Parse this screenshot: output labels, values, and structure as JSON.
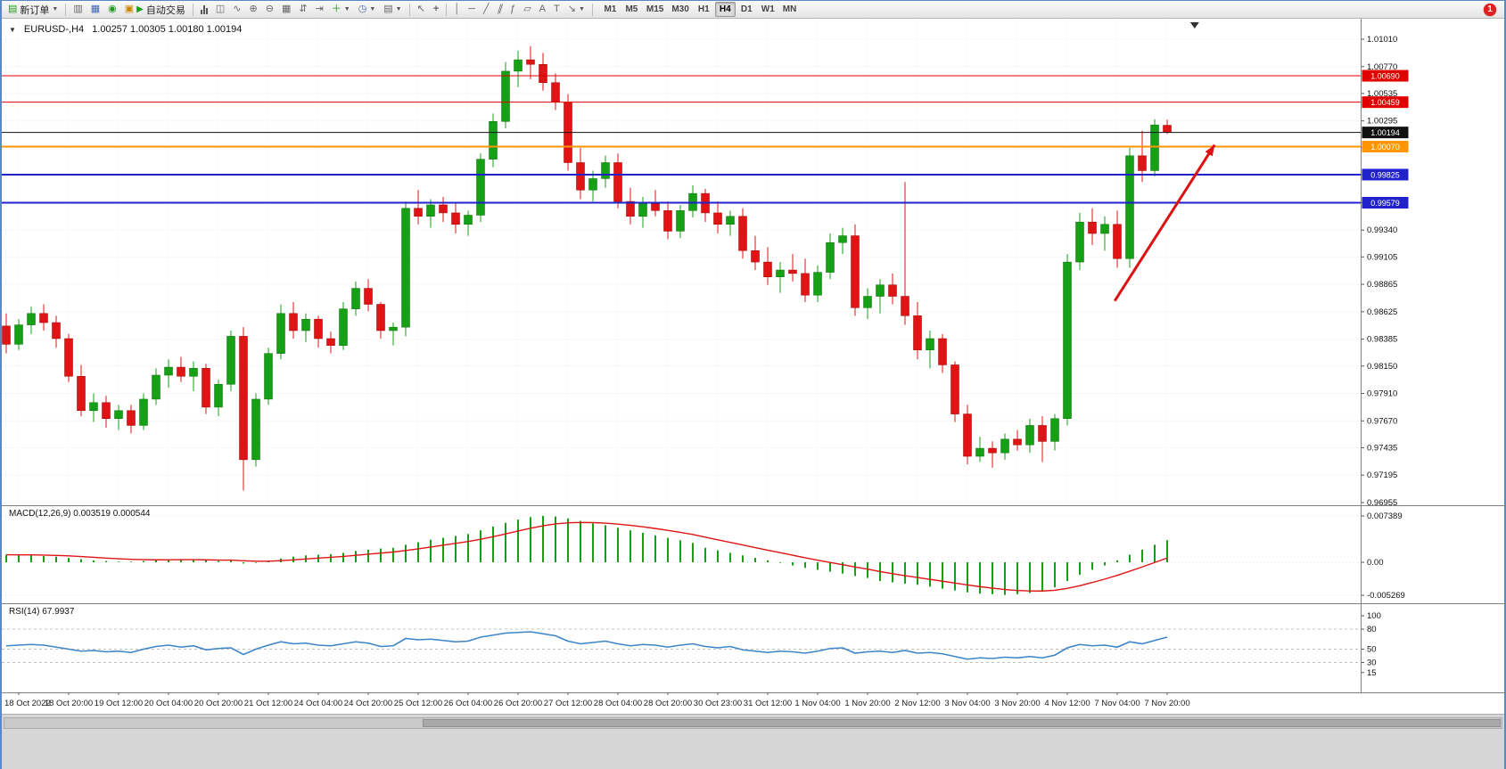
{
  "toolbar": {
    "new_order_label": "新订单",
    "auto_trading_label": "自动交易",
    "timeframes": [
      "M1",
      "M5",
      "M15",
      "M30",
      "H1",
      "H4",
      "D1",
      "W1",
      "MN"
    ],
    "active_timeframe": "H4",
    "notification_count": "1"
  },
  "chart": {
    "symbol_label": "EURUSD-,H4",
    "ohlc_label": "1.00257 1.00305 1.00180 1.00194",
    "macd_label": "MACD(12,26,9) 0.003519 0.000544",
    "rsi_label": "RSI(14) 67.9937"
  },
  "chart_data": {
    "type": "candlestick",
    "symbol": "EURUSD-",
    "timeframe": "H4",
    "current_ohlc": {
      "open": 1.00257,
      "high": 1.00305,
      "low": 1.0018,
      "close": 1.00194
    },
    "price_range": {
      "min": 0.96955,
      "max": 1.0101
    },
    "price_axis_ticks": [
      1.0101,
      1.0077,
      1.00535,
      1.00295,
      1.0006,
      0.99825,
      0.9958,
      0.9934,
      0.99105,
      0.98865,
      0.98625,
      0.98385,
      0.9815,
      0.9791,
      0.9767,
      0.97435,
      0.97195,
      0.96955
    ],
    "time_labels": [
      "18 Oct 2022",
      "18 Oct 20:00",
      "19 Oct 12:00",
      "20 Oct 04:00",
      "20 Oct 20:00",
      "21 Oct 12:00",
      "24 Oct 04:00",
      "24 Oct 20:00",
      "25 Oct 12:00",
      "26 Oct 04:00",
      "26 Oct 20:00",
      "27 Oct 12:00",
      "28 Oct 04:00",
      "28 Oct 20:00",
      "30 Oct 23:00",
      "31 Oct 12:00",
      "1 Nov 04:00",
      "1 Nov 20:00",
      "2 Nov 12:00",
      "3 Nov 04:00",
      "3 Nov 20:00",
      "4 Nov 12:00",
      "7 Nov 04:00",
      "7 Nov 20:00"
    ],
    "colors": {
      "bull": "#16a016",
      "bull_border": "#0a6e0a",
      "bear": "#e01414",
      "bear_border": "#990000",
      "macd_histogram": "#16a016",
      "macd_signal": "#e01414",
      "rsi_line": "#3d85c8",
      "grid": "#e3e3e3",
      "arrow": "#dd1111"
    },
    "candles_ohlc": [
      [
        0.985,
        0.9861,
        0.9826,
        0.9834
      ],
      [
        0.9834,
        0.9856,
        0.9829,
        0.9851
      ],
      [
        0.9851,
        0.9867,
        0.9843,
        0.9861
      ],
      [
        0.9861,
        0.9869,
        0.9846,
        0.9853
      ],
      [
        0.9853,
        0.9859,
        0.9831,
        0.9839
      ],
      [
        0.9839,
        0.9843,
        0.9801,
        0.9806
      ],
      [
        0.9806,
        0.9816,
        0.9771,
        0.9776
      ],
      [
        0.9776,
        0.9791,
        0.9766,
        0.9783
      ],
      [
        0.9783,
        0.9789,
        0.9761,
        0.9769
      ],
      [
        0.9769,
        0.9781,
        0.9759,
        0.9776
      ],
      [
        0.9776,
        0.9781,
        0.9756,
        0.9763
      ],
      [
        0.9763,
        0.9791,
        0.9759,
        0.9786
      ],
      [
        0.9786,
        0.9813,
        0.9781,
        0.9807
      ],
      [
        0.9807,
        0.9821,
        0.9796,
        0.9814
      ],
      [
        0.9814,
        0.9823,
        0.9801,
        0.9806
      ],
      [
        0.9806,
        0.9819,
        0.9793,
        0.9813
      ],
      [
        0.9813,
        0.9817,
        0.9773,
        0.9779
      ],
      [
        0.9779,
        0.9803,
        0.9771,
        0.9799
      ],
      [
        0.9799,
        0.9846,
        0.9793,
        0.9841
      ],
      [
        0.9841,
        0.9849,
        0.9706,
        0.9733
      ],
      [
        0.9733,
        0.9791,
        0.9727,
        0.9786
      ],
      [
        0.9786,
        0.9831,
        0.9781,
        0.9826
      ],
      [
        0.9826,
        0.9869,
        0.9821,
        0.9861
      ],
      [
        0.9861,
        0.9871,
        0.9839,
        0.9846
      ],
      [
        0.9846,
        0.9861,
        0.9836,
        0.9856
      ],
      [
        0.9856,
        0.9859,
        0.9831,
        0.9839
      ],
      [
        0.9839,
        0.9845,
        0.9826,
        0.9833
      ],
      [
        0.9833,
        0.9871,
        0.9829,
        0.9865
      ],
      [
        0.9865,
        0.9889,
        0.9859,
        0.9883
      ],
      [
        0.9883,
        0.9891,
        0.9863,
        0.9869
      ],
      [
        0.9869,
        0.9871,
        0.9839,
        0.9846
      ],
      [
        0.9846,
        0.9853,
        0.9833,
        0.9849
      ],
      [
        0.9849,
        0.9959,
        0.9841,
        0.9953
      ],
      [
        0.9953,
        0.9969,
        0.9939,
        0.9946
      ],
      [
        0.9946,
        0.9961,
        0.9936,
        0.9956
      ],
      [
        0.9956,
        0.9963,
        0.9941,
        0.9949
      ],
      [
        0.9949,
        0.9957,
        0.9931,
        0.9939
      ],
      [
        0.9939,
        0.9951,
        0.9929,
        0.9947
      ],
      [
        0.9947,
        1.0001,
        0.9941,
        0.9996
      ],
      [
        0.9996,
        1.0036,
        0.9989,
        1.0029
      ],
      [
        1.0029,
        1.0081,
        1.0023,
        1.0073
      ],
      [
        1.0073,
        1.0091,
        1.0059,
        1.0083
      ],
      [
        1.0083,
        1.0095,
        1.0066,
        1.0079
      ],
      [
        1.0079,
        1.0089,
        1.0056,
        1.0063
      ],
      [
        1.0063,
        1.0071,
        1.0039,
        1.0046
      ],
      [
        1.0046,
        1.0053,
        0.9986,
        0.9993
      ],
      [
        0.9993,
        1.0006,
        0.9961,
        0.9969
      ],
      [
        0.9969,
        0.9986,
        0.9959,
        0.9979
      ],
      [
        0.9979,
        0.9999,
        0.9971,
        0.9993
      ],
      [
        0.9993,
        1.0001,
        0.9953,
        0.9959
      ],
      [
        0.9959,
        0.9971,
        0.9939,
        0.9946
      ],
      [
        0.9946,
        0.9963,
        0.9936,
        0.9957
      ],
      [
        0.9957,
        0.9969,
        0.9946,
        0.9951
      ],
      [
        0.9951,
        0.9959,
        0.9926,
        0.9933
      ],
      [
        0.9933,
        0.9956,
        0.9927,
        0.9951
      ],
      [
        0.9951,
        0.9973,
        0.9945,
        0.9966
      ],
      [
        0.9966,
        0.997,
        0.9941,
        0.9949
      ],
      [
        0.9949,
        0.9959,
        0.9931,
        0.9939
      ],
      [
        0.9939,
        0.9951,
        0.9929,
        0.9946
      ],
      [
        0.9946,
        0.9953,
        0.9909,
        0.9916
      ],
      [
        0.9916,
        0.9929,
        0.9899,
        0.9906
      ],
      [
        0.9906,
        0.9919,
        0.9886,
        0.9893
      ],
      [
        0.9893,
        0.9906,
        0.9879,
        0.9899
      ],
      [
        0.9899,
        0.9913,
        0.9889,
        0.9896
      ],
      [
        0.9896,
        0.9909,
        0.9871,
        0.9877
      ],
      [
        0.9877,
        0.9903,
        0.9871,
        0.9897
      ],
      [
        0.9897,
        0.9931,
        0.9891,
        0.9923
      ],
      [
        0.9923,
        0.9936,
        0.9913,
        0.9929
      ],
      [
        0.9929,
        0.9939,
        0.9859,
        0.9866
      ],
      [
        0.9866,
        0.9883,
        0.9856,
        0.9876
      ],
      [
        0.9876,
        0.9891,
        0.9861,
        0.9886
      ],
      [
        0.9886,
        0.9896,
        0.9869,
        0.9876
      ],
      [
        0.9876,
        0.9976,
        0.9851,
        0.9859
      ],
      [
        0.9859,
        0.9871,
        0.9821,
        0.9829
      ],
      [
        0.9829,
        0.9846,
        0.9813,
        0.9839
      ],
      [
        0.9839,
        0.9843,
        0.9809,
        0.9816
      ],
      [
        0.9816,
        0.9819,
        0.9766,
        0.9773
      ],
      [
        0.9773,
        0.9781,
        0.9729,
        0.9736
      ],
      [
        0.9736,
        0.9753,
        0.9731,
        0.9743
      ],
      [
        0.9743,
        0.9749,
        0.9726,
        0.9739
      ],
      [
        0.9739,
        0.9756,
        0.9733,
        0.9751
      ],
      [
        0.9751,
        0.9759,
        0.9741,
        0.9746
      ],
      [
        0.9746,
        0.9769,
        0.9739,
        0.9763
      ],
      [
        0.9763,
        0.9771,
        0.9731,
        0.9749
      ],
      [
        0.9749,
        0.9773,
        0.9741,
        0.9769
      ],
      [
        0.9769,
        0.9913,
        0.9763,
        0.9906
      ],
      [
        0.9906,
        0.9949,
        0.9899,
        0.9941
      ],
      [
        0.9941,
        0.9953,
        0.9921,
        0.9931
      ],
      [
        0.9931,
        0.9946,
        0.9916,
        0.9939
      ],
      [
        0.9939,
        0.9951,
        0.9901,
        0.9909
      ],
      [
        0.9909,
        1.0006,
        0.9901,
        0.9999
      ],
      [
        0.9999,
        1.0021,
        0.9976,
        0.9986
      ],
      [
        0.9986,
        1.0031,
        0.9981,
        1.0026
      ],
      [
        1.00257,
        1.00305,
        1.0018,
        1.00194
      ]
    ],
    "horizontal_lines": [
      {
        "price": 1.0069,
        "label": "1.00690",
        "color": "#e00000",
        "width": 1
      },
      {
        "price": 1.00459,
        "label": "1.00459",
        "color": "#e00000",
        "width": 1
      },
      {
        "price": 1.00194,
        "label": "1.00194",
        "color": "#111111",
        "width": 1,
        "role": "current-price"
      },
      {
        "price": 1.0007,
        "label": "1.00070",
        "color": "#ff9500",
        "width": 2
      },
      {
        "price": 0.99825,
        "label": "0.99825",
        "color": "#2222cc",
        "width": 2
      },
      {
        "price": 0.99579,
        "label": "0.99579",
        "color": "#2222cc",
        "width": 2
      }
    ],
    "trend_arrow": {
      "from_index": 88.8,
      "from_price": 0.9872,
      "to_index": 96.8,
      "to_price": 1.00085
    },
    "last_bar_marker_x_index": 95.2,
    "macd": {
      "label": "MACD(12,26,9)",
      "value_main": 0.003519,
      "value_signal": 0.000544,
      "axis_ticks": [
        0.007389,
        0,
        -0.005269
      ],
      "histogram": [
        0.0012,
        0.0011,
        0.0012,
        0.001,
        0.0009,
        0.0007,
        0.0005,
        0.0003,
        0.0002,
        0.0001,
        0.0001,
        0.0002,
        0.0003,
        0.0004,
        0.0005,
        0.0004,
        0.0003,
        0.0002,
        0.0003,
        -0.0002,
        -0.0001,
        0.0002,
        0.0006,
        0.0009,
        0.0011,
        0.0012,
        0.0013,
        0.0015,
        0.0018,
        0.002,
        0.0022,
        0.0023,
        0.0028,
        0.0032,
        0.0036,
        0.0039,
        0.0042,
        0.0045,
        0.0051,
        0.0057,
        0.0063,
        0.0068,
        0.0072,
        0.0074,
        0.0073,
        0.007,
        0.0066,
        0.0062,
        0.0059,
        0.0055,
        0.0051,
        0.0047,
        0.0043,
        0.0039,
        0.0035,
        0.0031,
        0.0023,
        0.0019,
        0.0015,
        0.0011,
        0.0007,
        0.0003,
        -0.0001,
        -0.0005,
        -0.0009,
        -0.0012,
        -0.0015,
        -0.0018,
        -0.0022,
        -0.0025,
        -0.003,
        -0.0032,
        -0.0034,
        -0.0036,
        -0.0039,
        -0.0042,
        -0.0045,
        -0.0048,
        -0.005,
        -0.0051,
        -0.0052,
        -0.0051,
        -0.0049,
        -0.0046,
        -0.004,
        -0.003,
        -0.002,
        -0.0012,
        -0.0005,
        0.0003,
        0.0012,
        0.002,
        0.0028,
        0.003519
      ]
    },
    "rsi": {
      "label": "RSI(14)",
      "value": 67.9937,
      "levels": [
        100,
        80,
        50,
        30,
        15
      ],
      "values": [
        55,
        56,
        57,
        56,
        53,
        50,
        47,
        48,
        46,
        47,
        45,
        50,
        54,
        56,
        53,
        55,
        49,
        51,
        52,
        42,
        50,
        56,
        61,
        58,
        59,
        56,
        55,
        58,
        61,
        59,
        54,
        55,
        66,
        64,
        65,
        63,
        61,
        62,
        68,
        71,
        74,
        75,
        76,
        73,
        70,
        62,
        58,
        60,
        62,
        58,
        55,
        57,
        56,
        53,
        56,
        58,
        54,
        52,
        54,
        49,
        47,
        45,
        47,
        46,
        44,
        47,
        51,
        52,
        44,
        46,
        47,
        45,
        48,
        44,
        45,
        43,
        39,
        35,
        37,
        36,
        38,
        37,
        39,
        37,
        41,
        52,
        57,
        55,
        56,
        53,
        61,
        58,
        63,
        68
      ]
    }
  }
}
